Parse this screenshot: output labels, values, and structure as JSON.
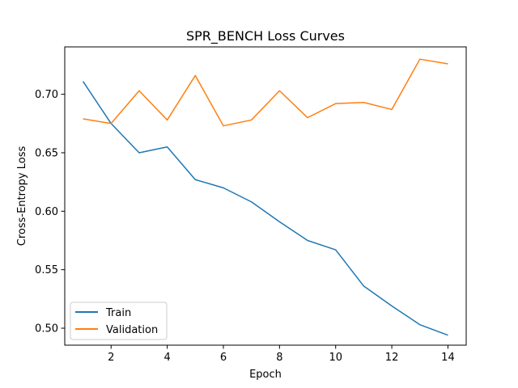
{
  "chart_data": {
    "type": "line",
    "title": "SPR_BENCH Loss Curves",
    "xlabel": "Epoch",
    "ylabel": "Cross-Entropy Loss",
    "x": [
      1,
      2,
      3,
      4,
      5,
      6,
      7,
      8,
      9,
      10,
      11,
      12,
      13,
      14
    ],
    "xticks": [
      2,
      4,
      6,
      8,
      10,
      12,
      14
    ],
    "yticks": [
      0.5,
      0.55,
      0.6,
      0.65,
      0.7
    ],
    "ytick_labels": [
      "0.50",
      "0.55",
      "0.60",
      "0.65",
      "0.70"
    ],
    "xlim": [
      0.35,
      14.65
    ],
    "ylim": [
      0.4855,
      0.7405
    ],
    "grid": false,
    "legend_position": "lower-left",
    "series": [
      {
        "name": "Train",
        "color": "#1f77b4",
        "values": [
          0.711,
          0.675,
          0.65,
          0.655,
          0.627,
          0.62,
          0.608,
          0.591,
          0.575,
          0.567,
          0.536,
          0.519,
          0.503,
          0.494
        ]
      },
      {
        "name": "Validation",
        "color": "#ff7f0e",
        "values": [
          0.679,
          0.675,
          0.703,
          0.678,
          0.716,
          0.673,
          0.678,
          0.703,
          0.68,
          0.692,
          0.693,
          0.687,
          0.73,
          0.726
        ]
      }
    ]
  }
}
